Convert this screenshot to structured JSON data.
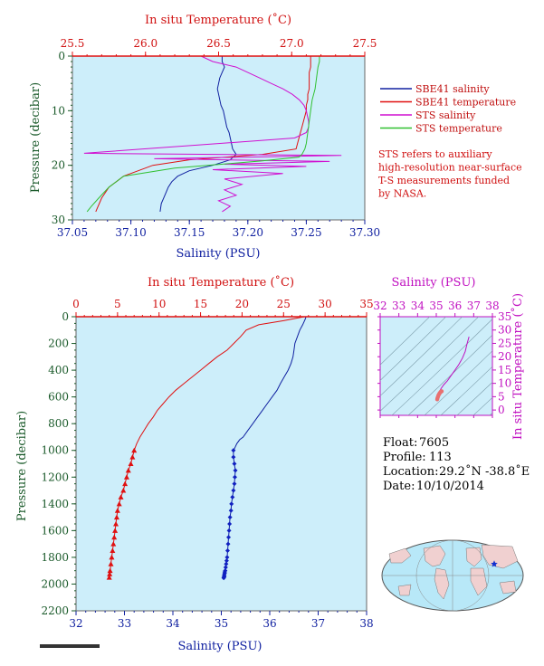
{
  "chart_data": [
    {
      "type": "line",
      "xlabel_bottom": "Salinity (PSU)",
      "xlabel_top": "In situ Temperature (˚C)",
      "ylabel": "Pressure (decibar)",
      "salinity_ticks": [
        "37.05",
        "37.10",
        "37.15",
        "37.20",
        "37.25",
        "37.30"
      ],
      "temperature_ticks": [
        "25.5",
        "26.0",
        "26.5",
        "27.0",
        "27.5"
      ],
      "pressure_ticks": [
        "0",
        "10",
        "20",
        "30"
      ],
      "salinity_range": [
        37.05,
        37.3
      ],
      "temperature_range": [
        25.5,
        27.5
      ],
      "pressure_range": [
        0,
        30
      ],
      "legend": [
        {
          "label": "SBE41 salinity",
          "color": "#1020a0"
        },
        {
          "label": "SBE41 temperature",
          "color": "#e01010"
        },
        {
          "label": "STS salinity",
          "color": "#d010d0"
        },
        {
          "label": "STS temperature",
          "color": "#30c030"
        }
      ],
      "note": [
        "STS refers to auxiliary",
        "high-resolution near-surface",
        "T-S measurements funded",
        "by NASA."
      ],
      "series": [
        {
          "name": "SBE41 salinity",
          "axis": "salinity",
          "color": "#1020a0",
          "x": [
            37.178,
            37.178,
            37.18,
            37.178,
            37.176,
            37.175,
            37.174,
            37.175,
            37.176,
            37.177,
            37.179,
            37.18,
            37.181,
            37.182,
            37.184,
            37.185,
            37.186,
            37.187,
            37.19,
            37.185,
            37.17,
            37.15,
            37.14,
            37.135,
            37.132,
            37.13,
            37.128,
            37.126,
            37.125
          ],
          "y": [
            0,
            1,
            2,
            3,
            4,
            5,
            6,
            7,
            8,
            9,
            10,
            11,
            12,
            13,
            14,
            15,
            16,
            17,
            18,
            19,
            20,
            21,
            22,
            23,
            24,
            25,
            26,
            27,
            28.5
          ]
        },
        {
          "name": "SBE41 temperature",
          "axis": "temperature",
          "color": "#e01010",
          "x": [
            27.13,
            27.13,
            27.12,
            27.12,
            27.12,
            27.12,
            27.11,
            27.11,
            27.1,
            27.1,
            27.09,
            27.08,
            27.07,
            27.06,
            27.05,
            27.04,
            27.03,
            26.8,
            26.3,
            26.05,
            25.95,
            25.85,
            25.8,
            25.75,
            25.7,
            25.66
          ],
          "y": [
            0,
            2,
            3,
            4,
            5,
            6,
            7,
            8,
            9,
            10,
            11,
            12,
            13,
            14,
            15,
            16,
            17,
            18,
            19,
            20,
            21,
            22,
            23,
            24,
            26,
            28.5
          ]
        },
        {
          "name": "STS salinity",
          "axis": "salinity",
          "color": "#d010d0",
          "x": [
            37.16,
            37.17,
            37.19,
            37.2,
            37.21,
            37.22,
            37.23,
            37.238,
            37.244,
            37.248,
            37.25,
            37.251,
            37.252,
            37.252,
            37.25,
            37.24,
            37.06,
            37.28,
            37.12,
            37.27,
            37.18,
            37.25,
            37.17,
            37.23,
            37.18,
            37.195,
            37.18,
            37.19,
            37.175,
            37.185,
            37.178
          ],
          "y": [
            0,
            1,
            2,
            3,
            4,
            5,
            6,
            7,
            8,
            9,
            10,
            11,
            12,
            13,
            14,
            15,
            17.8,
            18.2,
            18.8,
            19.3,
            19.8,
            20.2,
            20.8,
            21.5,
            22.5,
            23.5,
            24.5,
            25.5,
            26.5,
            27.5,
            28.5
          ]
        },
        {
          "name": "STS temperature",
          "axis": "temperature",
          "color": "#30c030",
          "x": [
            27.19,
            27.19,
            27.18,
            27.17,
            27.16,
            27.14,
            27.13,
            27.12,
            27.11,
            27.1,
            27.09,
            27.07,
            27.05,
            26.8,
            26.2,
            25.85,
            25.75,
            25.68,
            25.63,
            25.6
          ],
          "y": [
            0,
            1,
            2,
            4,
            6,
            8,
            10,
            12,
            14,
            16,
            17,
            18,
            18.5,
            19.2,
            20.5,
            22,
            24,
            26,
            27.5,
            28.5
          ]
        }
      ]
    },
    {
      "type": "line",
      "xlabel_bottom": "Salinity (PSU)",
      "xlabel_top": "In situ Temperature (˚C)",
      "ylabel": "Pressure (decibar)",
      "salinity_ticks": [
        "32",
        "33",
        "34",
        "35",
        "36",
        "37",
        "38"
      ],
      "temperature_ticks": [
        "0",
        "5",
        "10",
        "15",
        "20",
        "25",
        "30",
        "35"
      ],
      "pressure_ticks": [
        "0",
        "200",
        "400",
        "600",
        "800",
        "1000",
        "1200",
        "1400",
        "1600",
        "1800",
        "2000",
        "2200"
      ],
      "salinity_range": [
        32,
        38
      ],
      "temperature_range": [
        0,
        35
      ],
      "pressure_range": [
        0,
        2200
      ],
      "series": [
        {
          "name": "salinity",
          "axis": "salinity",
          "color": "#1020a0",
          "x": [
            36.75,
            36.73,
            36.68,
            36.62,
            36.57,
            36.52,
            36.5,
            36.48,
            36.44,
            36.38,
            36.3,
            36.22,
            36.15,
            36.05,
            35.95,
            35.85,
            35.75,
            35.65,
            35.55,
            35.45,
            35.38,
            35.32,
            35.28,
            35.25
          ],
          "y": [
            0,
            20,
            60,
            100,
            150,
            200,
            250,
            300,
            350,
            400,
            450,
            500,
            550,
            600,
            650,
            700,
            750,
            800,
            850,
            900,
            920,
            950,
            980,
            1000
          ]
        },
        {
          "name": "temperature",
          "axis": "temperature",
          "color": "#e01010",
          "x": [
            27.5,
            25.0,
            22.0,
            20.5,
            19.8,
            19.0,
            18.2,
            17.0,
            16.0,
            15.0,
            14.0,
            13.0,
            12.0,
            11.2,
            10.5,
            9.8,
            9.3,
            8.7,
            8.2,
            7.7,
            7.3,
            7.0
          ],
          "y": [
            0,
            30,
            60,
            100,
            150,
            200,
            250,
            300,
            350,
            400,
            450,
            500,
            550,
            600,
            650,
            700,
            750,
            800,
            850,
            900,
            950,
            1000
          ]
        }
      ],
      "salinity_markers": {
        "x": [
          35.25,
          35.25,
          35.27,
          35.29,
          35.28,
          35.27,
          35.25,
          35.23,
          35.21,
          35.2,
          35.18,
          35.17,
          35.16,
          35.15,
          35.14,
          35.13,
          35.12,
          35.11,
          35.1,
          35.09,
          35.08,
          35.07,
          35.07,
          35.06,
          35.06,
          35.06,
          35.05,
          35.05
        ],
        "y": [
          1000,
          1050,
          1100,
          1150,
          1200,
          1250,
          1300,
          1350,
          1400,
          1450,
          1500,
          1550,
          1600,
          1650,
          1700,
          1750,
          1800,
          1825,
          1850,
          1875,
          1900,
          1910,
          1920,
          1930,
          1940,
          1945,
          1950,
          1955
        ]
      },
      "temperature_markers": {
        "x": [
          7.0,
          6.8,
          6.6,
          6.3,
          6.1,
          5.9,
          5.7,
          5.4,
          5.2,
          5.0,
          4.9,
          4.8,
          4.7,
          4.6,
          4.5,
          4.4,
          4.3,
          4.2,
          4.1,
          4.05,
          4.0
        ],
        "y": [
          1000,
          1050,
          1100,
          1150,
          1200,
          1250,
          1300,
          1350,
          1400,
          1450,
          1500,
          1550,
          1600,
          1650,
          1700,
          1750,
          1800,
          1850,
          1900,
          1925,
          1950
        ]
      }
    },
    {
      "type": "line",
      "xlabel_top": "Salinity (PSU)",
      "ylabel_right": "In situ Temperature (˚C)",
      "salinity_ticks": [
        "32",
        "33",
        "34",
        "35",
        "36",
        "37",
        "38"
      ],
      "temperature_ticks": [
        "0",
        "5",
        "10",
        "15",
        "20",
        "25",
        "30",
        "35"
      ],
      "salinity_range": [
        32,
        38
      ],
      "temperature_range": [
        -2,
        35
      ],
      "series": [
        {
          "name": "T-S",
          "color": "#c010c0",
          "x": [
            35.05,
            35.1,
            35.18,
            35.25,
            35.4,
            35.6,
            35.8,
            36.0,
            36.2,
            36.4,
            36.55,
            36.65,
            36.75
          ],
          "y": [
            4.0,
            5.5,
            7.0,
            8.0,
            9.5,
            11.0,
            13.0,
            15.0,
            17.0,
            19.5,
            22.0,
            25.0,
            27.5
          ]
        }
      ],
      "markers": {
        "color": "#e87070",
        "x": [
          35.05,
          35.06,
          35.08,
          35.1,
          35.12,
          35.15,
          35.17,
          35.2,
          35.22,
          35.25,
          35.27,
          35.29
        ],
        "y": [
          4.0,
          4.4,
          4.8,
          5.2,
          5.6,
          5.9,
          6.2,
          6.5,
          6.7,
          6.9,
          7.0,
          7.0
        ]
      }
    }
  ],
  "info": {
    "float_label": "Float:",
    "float_value": "7605",
    "profile_label": "Profile:",
    "profile_value": "113",
    "location_label": "Location:",
    "location_value": "29.2˚N  -38.8˚E",
    "date_label": "Date:",
    "date_value": "10/10/2014"
  },
  "map": {
    "marker_lat": 29.2,
    "marker_lon": -38.8,
    "ocean_color": "#b8e8f8",
    "land_color": "#f0d0d0"
  },
  "colors": {
    "plot_bg": "#cdeefa",
    "salinity": "#1020a0",
    "temperature": "#e01010",
    "sts_salinity": "#d010d0",
    "sts_temperature": "#30c030",
    "ts_curve": "#c010c0",
    "frame": "#666666"
  }
}
